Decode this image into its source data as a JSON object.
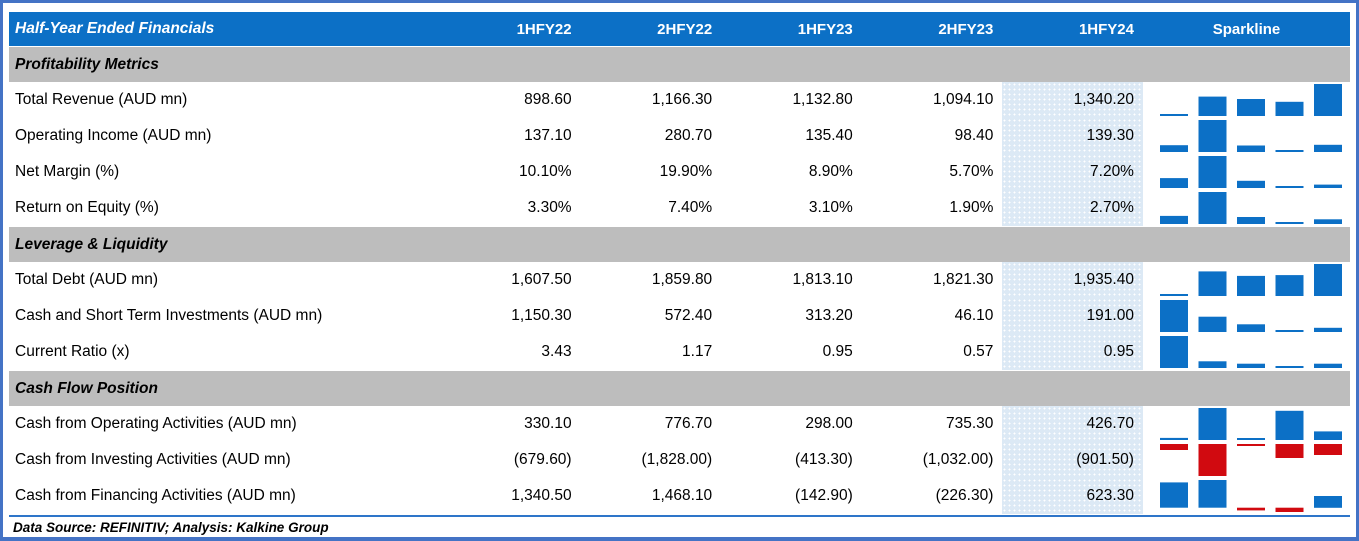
{
  "header": {
    "title": "Half-Year Ended Financials",
    "columns": [
      "1HFY22",
      "2HFY22",
      "1HFY23",
      "2HFY23",
      "1HFY24"
    ],
    "sparkline_label": "Sparkline",
    "highlight_column": "1HFY24"
  },
  "sections": [
    {
      "title": "Profitability Metrics",
      "rows": [
        {
          "label": "Total Revenue (AUD mn)",
          "values": [
            "898.60",
            "1,166.30",
            "1,132.80",
            "1,094.10",
            "1,340.20"
          ],
          "spark": [
            898.6,
            1166.3,
            1132.8,
            1094.1,
            1340.2
          ]
        },
        {
          "label": "Operating Income (AUD mn)",
          "values": [
            "137.10",
            "280.70",
            "135.40",
            "98.40",
            "139.30"
          ],
          "spark": [
            137.1,
            280.7,
            135.4,
            98.4,
            139.3
          ]
        },
        {
          "label": "Net Margin (%)",
          "values": [
            "10.10%",
            "19.90%",
            "8.90%",
            "5.70%",
            "7.20%"
          ],
          "spark": [
            10.1,
            19.9,
            8.9,
            5.7,
            7.2
          ]
        },
        {
          "label": "Return on Equity (%)",
          "values": [
            "3.30%",
            "7.40%",
            "3.10%",
            "1.90%",
            "2.70%"
          ],
          "spark": [
            3.3,
            7.4,
            3.1,
            1.9,
            2.7
          ]
        }
      ]
    },
    {
      "title": "Leverage & Liquidity",
      "rows": [
        {
          "label": "Total Debt (AUD mn)",
          "values": [
            "1,607.50",
            "1,859.80",
            "1,813.10",
            "1,821.30",
            "1,935.40"
          ],
          "spark": [
            1607.5,
            1859.8,
            1813.1,
            1821.3,
            1935.4
          ]
        },
        {
          "label": "Cash and Short Term Investments (AUD mn)",
          "values": [
            "1,150.30",
            "572.40",
            "313.20",
            "46.10",
            "191.00"
          ],
          "spark": [
            1150.3,
            572.4,
            313.2,
            46.1,
            191.0
          ]
        },
        {
          "label": "Current Ratio (x)",
          "values": [
            "3.43",
            "1.17",
            "0.95",
            "0.57",
            "0.95"
          ],
          "spark": [
            3.43,
            1.17,
            0.95,
            0.57,
            0.95
          ]
        }
      ]
    },
    {
      "title": "Cash Flow Position",
      "rows": [
        {
          "label": "Cash from Operating Activities (AUD mn)",
          "values": [
            "330.10",
            "776.70",
            "298.00",
            "735.30",
            "426.70"
          ],
          "spark": [
            330.1,
            776.7,
            298.0,
            735.3,
            426.7
          ]
        },
        {
          "label": "Cash from Investing Activities (AUD mn)",
          "values": [
            "(679.60)",
            "(1,828.00)",
            "(413.30)",
            "(1,032.00)",
            "(901.50)"
          ],
          "spark": [
            -679.6,
            -1828.0,
            -413.3,
            -1032.0,
            -901.5
          ]
        },
        {
          "label": "Cash from Financing Activities (AUD mn)",
          "values": [
            "1,340.50",
            "1,468.10",
            "(142.90)",
            "(226.30)",
            "623.30"
          ],
          "spark": [
            1340.5,
            1468.1,
            -142.9,
            -226.3,
            623.3
          ]
        }
      ]
    }
  ],
  "footer": {
    "text": "Data Source: REFINITIV; Analysis: Kalkine Group"
  },
  "colors": {
    "header_bg": "#0C70C6",
    "header_text": "#FFFFFF",
    "section_bg": "#BDBDBD",
    "highlight_bg": "#DCE9F5",
    "spark_positive": "#0C70C6",
    "spark_negative": "#D10A10",
    "outer_border": "#4473C5",
    "rule_line": "#2E75C9",
    "body_text": "#000000"
  },
  "chart_data": {
    "type": "table",
    "title": "Half-Year Ended Financials",
    "columns": [
      "1HFY22",
      "2HFY22",
      "1HFY23",
      "2HFY23",
      "1HFY24"
    ],
    "sparkline_style": "column sparkline per row; positive bars blue, negative bars red; per-row min-max scaling",
    "groups": [
      {
        "name": "Profitability Metrics",
        "series": [
          {
            "name": "Total Revenue (AUD mn)",
            "values": [
              898.6,
              1166.3,
              1132.8,
              1094.1,
              1340.2
            ]
          },
          {
            "name": "Operating Income (AUD mn)",
            "values": [
              137.1,
              280.7,
              135.4,
              98.4,
              139.3
            ]
          },
          {
            "name": "Net Margin (%)",
            "values": [
              10.1,
              19.9,
              8.9,
              5.7,
              7.2
            ]
          },
          {
            "name": "Return on Equity (%)",
            "values": [
              3.3,
              7.4,
              3.1,
              1.9,
              2.7
            ]
          }
        ]
      },
      {
        "name": "Leverage & Liquidity",
        "series": [
          {
            "name": "Total Debt (AUD mn)",
            "values": [
              1607.5,
              1859.8,
              1813.1,
              1821.3,
              1935.4
            ]
          },
          {
            "name": "Cash and Short Term Investments (AUD mn)",
            "values": [
              1150.3,
              572.4,
              313.2,
              46.1,
              191.0
            ]
          },
          {
            "name": "Current Ratio (x)",
            "values": [
              3.43,
              1.17,
              0.95,
              0.57,
              0.95
            ]
          }
        ]
      },
      {
        "name": "Cash Flow Position",
        "series": [
          {
            "name": "Cash from Operating Activities (AUD mn)",
            "values": [
              330.1,
              776.7,
              298.0,
              735.3,
              426.7
            ]
          },
          {
            "name": "Cash from Investing Activities (AUD mn)",
            "values": [
              -679.6,
              -1828.0,
              -413.3,
              -1032.0,
              -901.5
            ]
          },
          {
            "name": "Cash from Financing Activities (AUD mn)",
            "values": [
              1340.5,
              1468.1,
              -142.9,
              -226.3,
              623.3
            ]
          }
        ]
      }
    ]
  }
}
